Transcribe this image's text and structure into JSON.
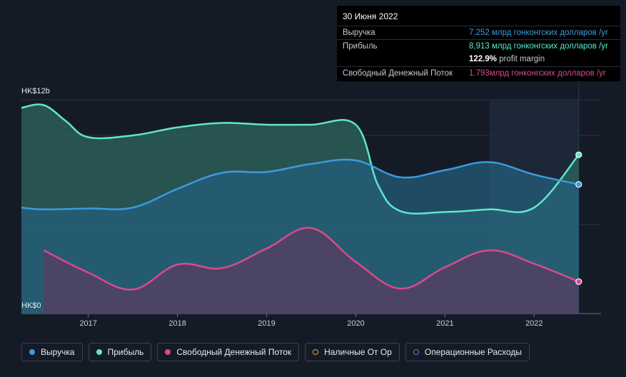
{
  "tooltip": {
    "date": "30 Июня 2022",
    "rows": [
      {
        "label": "Выручка",
        "value": "7,252 млрд гонконгских долларов /yr",
        "color": "#3b9bdc"
      },
      {
        "label": "Прибыль",
        "value": "8,913 млрд гонконгских долларов /yr",
        "color": "#5ee8c9"
      },
      {
        "label": "",
        "margin_value": "122.9%",
        "margin_text": " profit margin"
      },
      {
        "label": "Свободный Денежный Поток",
        "value": "1.793млрд гонконгских долларов /yr",
        "color": "#d94b8b"
      }
    ]
  },
  "legend": [
    {
      "label": "Выручка",
      "color": "#3b9bdc",
      "filled": true
    },
    {
      "label": "Прибыль",
      "color": "#5ee8c9",
      "filled": true
    },
    {
      "label": "Свободный Денежный Поток",
      "color": "#d94b8b",
      "filled": true
    },
    {
      "label": "Наличные От Ор",
      "color": "#e0a63a",
      "filled": false
    },
    {
      "label": "Операционные Расходы",
      "color": "#a35bd6",
      "filled": false
    }
  ],
  "chart_data": {
    "type": "area",
    "y_top_label": "HK$12b",
    "y_bottom_label": "HK$0",
    "ylim": [
      0,
      12
    ],
    "xlim": [
      2016.25,
      2022.75
    ],
    "x_ticks": [
      2017,
      2018,
      2019,
      2020,
      2021,
      2022
    ],
    "x_tick_labels": [
      "2017",
      "2018",
      "2019",
      "2020",
      "2021",
      "2022"
    ],
    "highlight_start": 2021.5,
    "highlight_end": 2022.5,
    "series": [
      {
        "name": "Прибыль",
        "color": "#5ee8c9",
        "fill": "#2f6b62",
        "points": [
          [
            2016.25,
            11.55
          ],
          [
            2016.5,
            11.7
          ],
          [
            2016.75,
            10.8
          ],
          [
            2017.0,
            9.9
          ],
          [
            2017.5,
            10.0
          ],
          [
            2018.0,
            10.45
          ],
          [
            2018.5,
            10.7
          ],
          [
            2019.0,
            10.6
          ],
          [
            2019.5,
            10.6
          ],
          [
            2020.0,
            10.6
          ],
          [
            2020.25,
            7.2
          ],
          [
            2020.5,
            5.75
          ],
          [
            2021.0,
            5.7
          ],
          [
            2021.5,
            5.85
          ],
          [
            2022.0,
            5.95
          ],
          [
            2022.5,
            8.913
          ]
        ]
      },
      {
        "name": "Выручка",
        "color": "#3b9bdc",
        "fill": "#25607f",
        "points": [
          [
            2016.25,
            5.95
          ],
          [
            2016.5,
            5.85
          ],
          [
            2017.0,
            5.9
          ],
          [
            2017.5,
            5.95
          ],
          [
            2018.0,
            7.0
          ],
          [
            2018.5,
            7.9
          ],
          [
            2019.0,
            7.95
          ],
          [
            2019.5,
            8.4
          ],
          [
            2020.0,
            8.6
          ],
          [
            2020.5,
            7.65
          ],
          [
            2021.0,
            8.05
          ],
          [
            2021.5,
            8.5
          ],
          [
            2022.0,
            7.8
          ],
          [
            2022.5,
            7.252
          ]
        ]
      },
      {
        "name": "Свободный Денежный Поток",
        "color": "#d94b8b",
        "fill": "#5b3a5f",
        "points": [
          [
            2016.5,
            3.55
          ],
          [
            2017.0,
            2.3
          ],
          [
            2017.5,
            1.35
          ],
          [
            2018.0,
            2.75
          ],
          [
            2018.5,
            2.55
          ],
          [
            2019.0,
            3.65
          ],
          [
            2019.5,
            4.8
          ],
          [
            2020.0,
            2.9
          ],
          [
            2020.5,
            1.4
          ],
          [
            2021.0,
            2.6
          ],
          [
            2021.5,
            3.55
          ],
          [
            2022.0,
            2.8
          ],
          [
            2022.5,
            1.793
          ]
        ]
      }
    ]
  }
}
